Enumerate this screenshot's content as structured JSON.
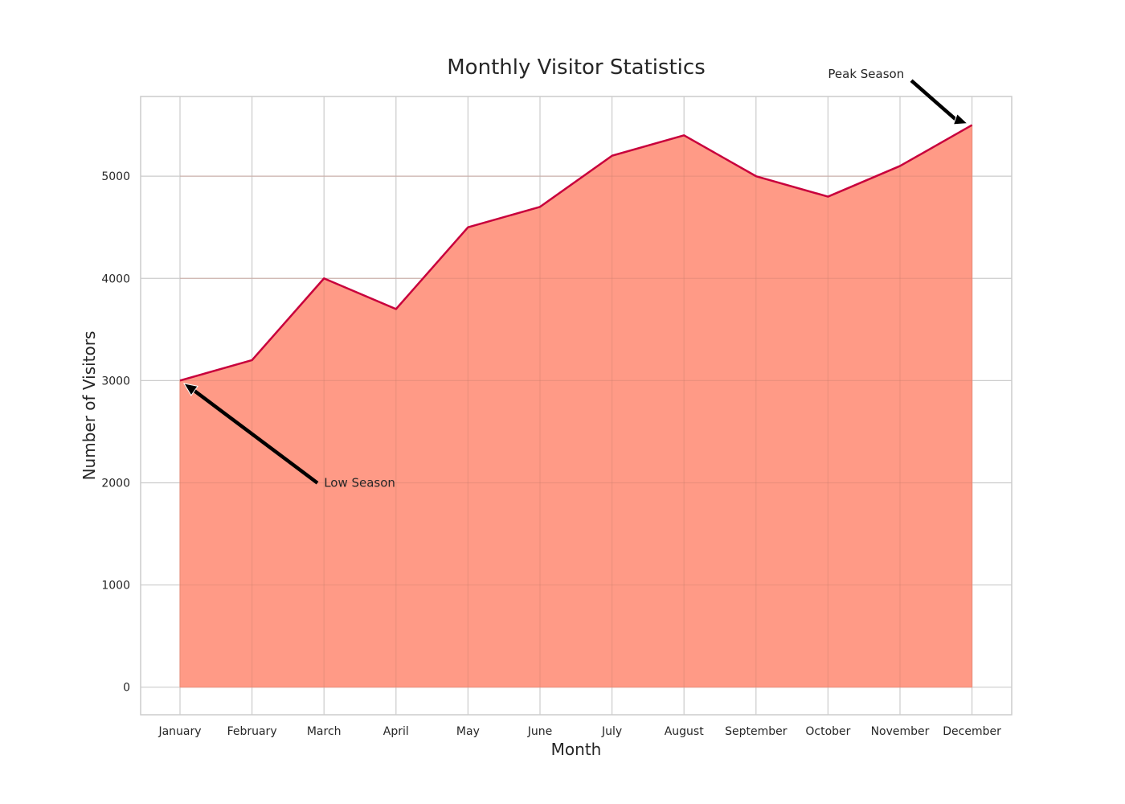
{
  "chart_data": {
    "type": "area",
    "title": "Monthly Visitor Statistics",
    "xlabel": "Month",
    "ylabel": "Number of Visitors",
    "categories": [
      "January",
      "February",
      "March",
      "April",
      "May",
      "June",
      "July",
      "August",
      "September",
      "October",
      "November",
      "December"
    ],
    "values": [
      3000,
      3200,
      4000,
      3700,
      4500,
      4700,
      5200,
      5400,
      5000,
      4800,
      5100,
      5500
    ],
    "ylim": [
      -270,
      5780
    ],
    "yticks": [
      0,
      1000,
      2000,
      3000,
      4000,
      5000
    ],
    "grid": true,
    "colors": {
      "fill": "#ff9580",
      "line": "#c8003c",
      "grid": "#cccccc",
      "spine": "#cccccc",
      "arrow": "#000000"
    },
    "annotations": [
      {
        "text": "Low Season",
        "target_category": "January",
        "target_value": 3000,
        "text_category_pos": 2.0,
        "text_value_pos": 2000
      },
      {
        "text": "Peak Season",
        "target_category": "December",
        "target_value": 5500,
        "text_category_pos": 9.0,
        "text_value_pos": 6000
      }
    ]
  }
}
